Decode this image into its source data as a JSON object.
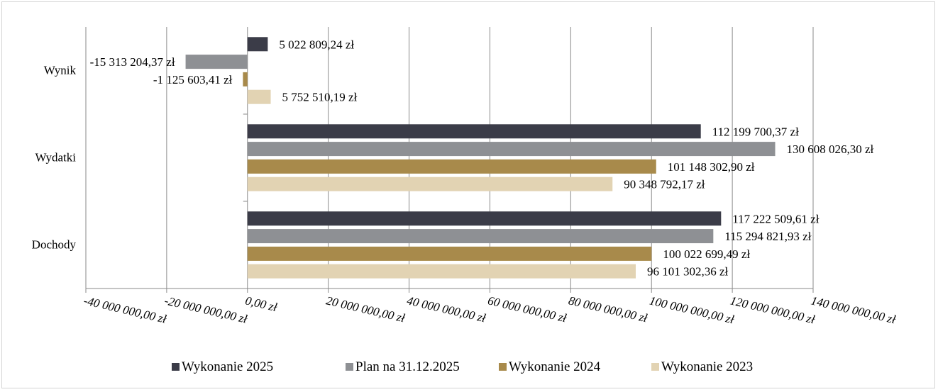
{
  "chart_data": {
    "type": "bar",
    "orientation": "horizontal",
    "categories": [
      "Wynik",
      "Wydatki",
      "Dochody"
    ],
    "series": [
      {
        "name": "Wykonanie 2025",
        "color": "#3b3c48",
        "values": [
          5022809.24,
          112199700.37,
          117222509.61
        ],
        "labels": [
          "5 022 809,24 zł",
          "112 199 700,37 zł",
          "117 222 509,61 zł"
        ]
      },
      {
        "name": "Plan na 31.12.2025",
        "color": "#8e9094",
        "values": [
          -15313204.37,
          130608026.3,
          115294821.93
        ],
        "labels": [
          "-15 313 204,37 zł",
          "130 608 026,30 zł",
          "115 294 821,93 zł"
        ]
      },
      {
        "name": "Wykonanie 2024",
        "color": "#a88a4b",
        "values": [
          -1125603.41,
          101148302.9,
          100022699.49
        ],
        "labels": [
          "-1 125 603,41 zł",
          "101 148 302,90 zł",
          "100 022 699,49 zł"
        ]
      },
      {
        "name": "Wykonanie 2023",
        "color": "#e2d3b3",
        "values": [
          5752510.19,
          90348792.17,
          96101302.36
        ],
        "labels": [
          "5 752 510,19 zł",
          "90 348 792,17 zł",
          "96 101 302,36 zł"
        ]
      }
    ],
    "x_ticks": [
      -40000000,
      -20000000,
      0,
      20000000,
      40000000,
      60000000,
      80000000,
      100000000,
      120000000,
      140000000
    ],
    "x_tick_labels": [
      "-40 000 000,00 zł",
      "-20 000 000,00 zł",
      "0,00 zł",
      "20 000 000,00 zł",
      "40 000 000,00 zł",
      "60 000 000,00 zł",
      "80 000 000,00 zł",
      "100 000 000,00 zł",
      "120 000 000,00 zł",
      "140 000 000,00 zł"
    ],
    "xlim": [
      -40000000,
      140000000
    ],
    "grid": "vertical",
    "legend_position": "bottom"
  }
}
